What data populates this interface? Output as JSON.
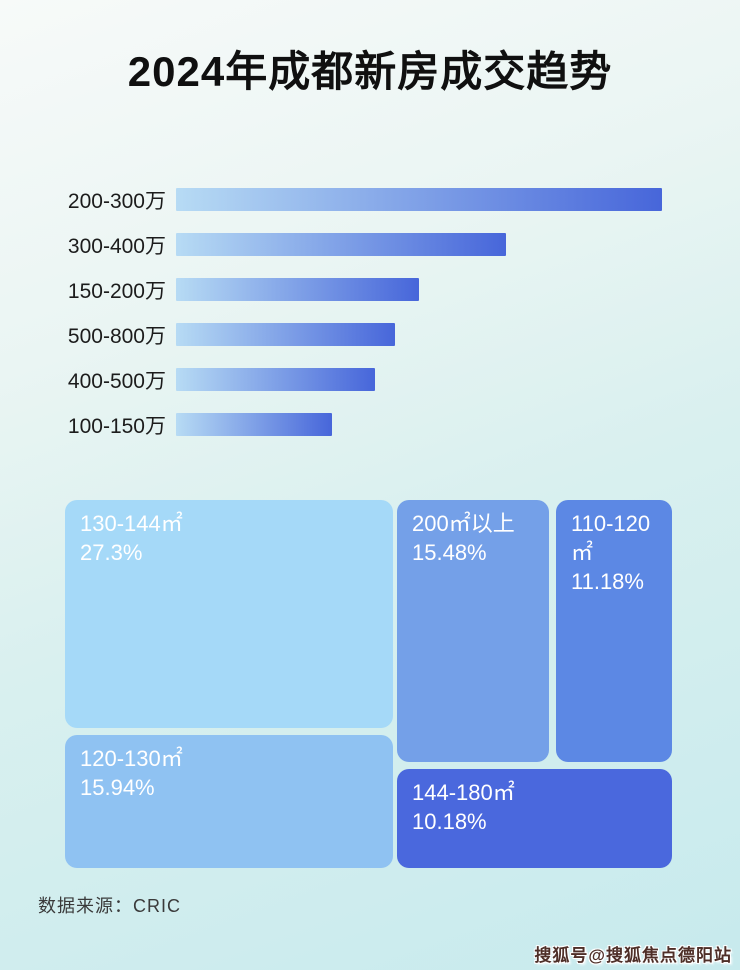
{
  "page": {
    "title": "2024年成都新房成交趋势",
    "source_label": "数据来源：CRIC",
    "watermark": "搜狐号@搜狐焦点德阳站",
    "background_top_color": "#f7faf9",
    "background_bottom_color": "#c7eaed"
  },
  "bar_chart": {
    "bar_gradient_from": "#b7dbf4",
    "bar_gradient_to": "#4766da",
    "rows": [
      {
        "label": "200-300万",
        "width_pct": 100
      },
      {
        "label": "300-400万",
        "width_pct": 68
      },
      {
        "label": "150-200万",
        "width_pct": 50
      },
      {
        "label": "500-800万",
        "width_pct": 45
      },
      {
        "label": "400-500万",
        "width_pct": 41
      },
      {
        "label": "100-150万",
        "width_pct": 32
      }
    ]
  },
  "treemap": {
    "tiles": [
      {
        "label": "130-144㎡",
        "value": "27.3%",
        "color": "#a5d9f8"
      },
      {
        "label": "120-130㎡",
        "value": "15.94%",
        "color": "#8fc2f2"
      },
      {
        "label": "200㎡以上",
        "value": "15.48%",
        "color": "#74a0e8"
      },
      {
        "label": "110-120㎡",
        "value": "11.18%",
        "color": "#5c88e4"
      },
      {
        "label": "144-180㎡",
        "value": "10.18%",
        "color": "#4a68dd"
      }
    ]
  },
  "chart_data": [
    {
      "type": "bar",
      "orientation": "horizontal",
      "title": "2024年成都新房成交趋势",
      "categories": [
        "200-300万",
        "300-400万",
        "150-200万",
        "500-800万",
        "400-500万",
        "100-150万"
      ],
      "values": [
        100,
        68,
        50,
        45,
        41,
        32
      ],
      "values_unit": "estimated percent of longest bar (no numeric data labels shown in image)",
      "xlabel": "",
      "ylabel": "",
      "grid": false,
      "legend": false
    },
    {
      "type": "treemap",
      "title": "",
      "segments": [
        {
          "label": "130-144㎡",
          "value_pct": 27.3
        },
        {
          "label": "120-130㎡",
          "value_pct": 15.94
        },
        {
          "label": "200㎡以上",
          "value_pct": 15.48
        },
        {
          "label": "110-120㎡",
          "value_pct": 11.18
        },
        {
          "label": "144-180㎡",
          "value_pct": 10.18
        }
      ],
      "legend": false
    }
  ]
}
